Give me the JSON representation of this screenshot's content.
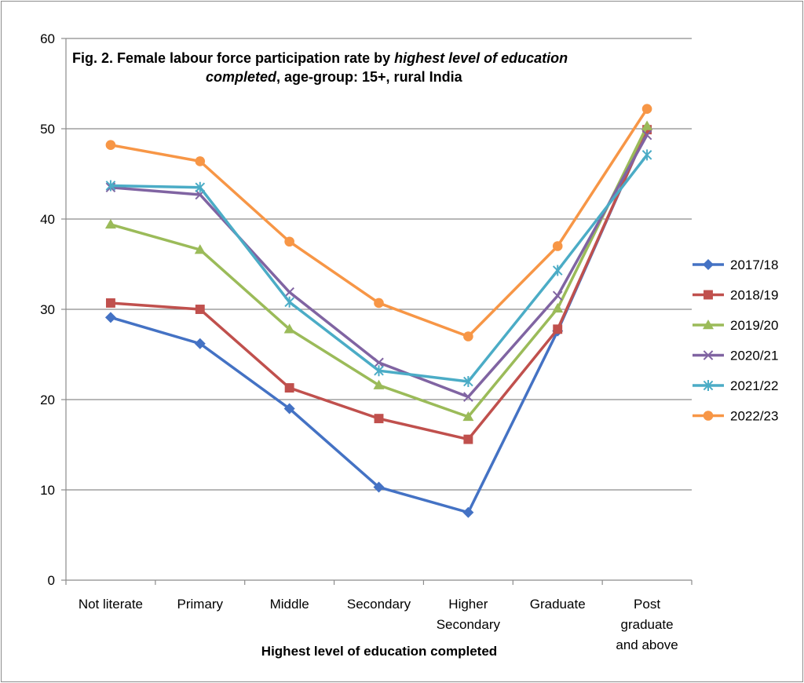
{
  "chart_data": {
    "type": "line",
    "title": {
      "line1_plain": "Fig. 2. Female labour force participation rate by ",
      "line1_italic": "highest level of education",
      "line2_italic": "completed",
      "line2_plain": ",  age-group: 15+, rural India"
    },
    "xlabel": "Highest level of education completed",
    "ylabel": "",
    "ylim": [
      0,
      60
    ],
    "yticks": [
      "0",
      "10",
      "20",
      "30",
      "40",
      "50",
      "60"
    ],
    "categories": [
      [
        "Not literate"
      ],
      [
        "Primary"
      ],
      [
        "Middle"
      ],
      [
        "Secondary"
      ],
      [
        "Higher",
        "Secondary"
      ],
      [
        "Graduate"
      ],
      [
        "Post",
        "graduate",
        "and above"
      ]
    ],
    "grid": true,
    "legend_position": "right",
    "series": [
      {
        "name": "2017/18",
        "color": "#4472c4",
        "marker": "diamond",
        "values": [
          29.1,
          26.2,
          19.0,
          10.3,
          7.5,
          27.6,
          49.9
        ]
      },
      {
        "name": "2018/19",
        "color": "#c0504d",
        "marker": "square",
        "values": [
          30.7,
          30.0,
          21.3,
          17.9,
          15.6,
          27.8,
          49.9
        ]
      },
      {
        "name": "2019/20",
        "color": "#9bbb59",
        "marker": "triangle",
        "values": [
          39.4,
          36.6,
          27.8,
          21.6,
          18.1,
          30.1,
          50.3
        ]
      },
      {
        "name": "2020/21",
        "color": "#8064a2",
        "marker": "x",
        "values": [
          43.5,
          42.7,
          31.9,
          24.1,
          20.3,
          31.5,
          49.3
        ]
      },
      {
        "name": "2021/22",
        "color": "#4bacc6",
        "marker": "star",
        "values": [
          43.7,
          43.5,
          30.8,
          23.2,
          22.0,
          34.3,
          47.1
        ]
      },
      {
        "name": "2022/23",
        "color": "#f79646",
        "marker": "circle",
        "values": [
          48.2,
          46.4,
          37.5,
          30.7,
          27.0,
          37.0,
          52.2
        ]
      }
    ]
  }
}
